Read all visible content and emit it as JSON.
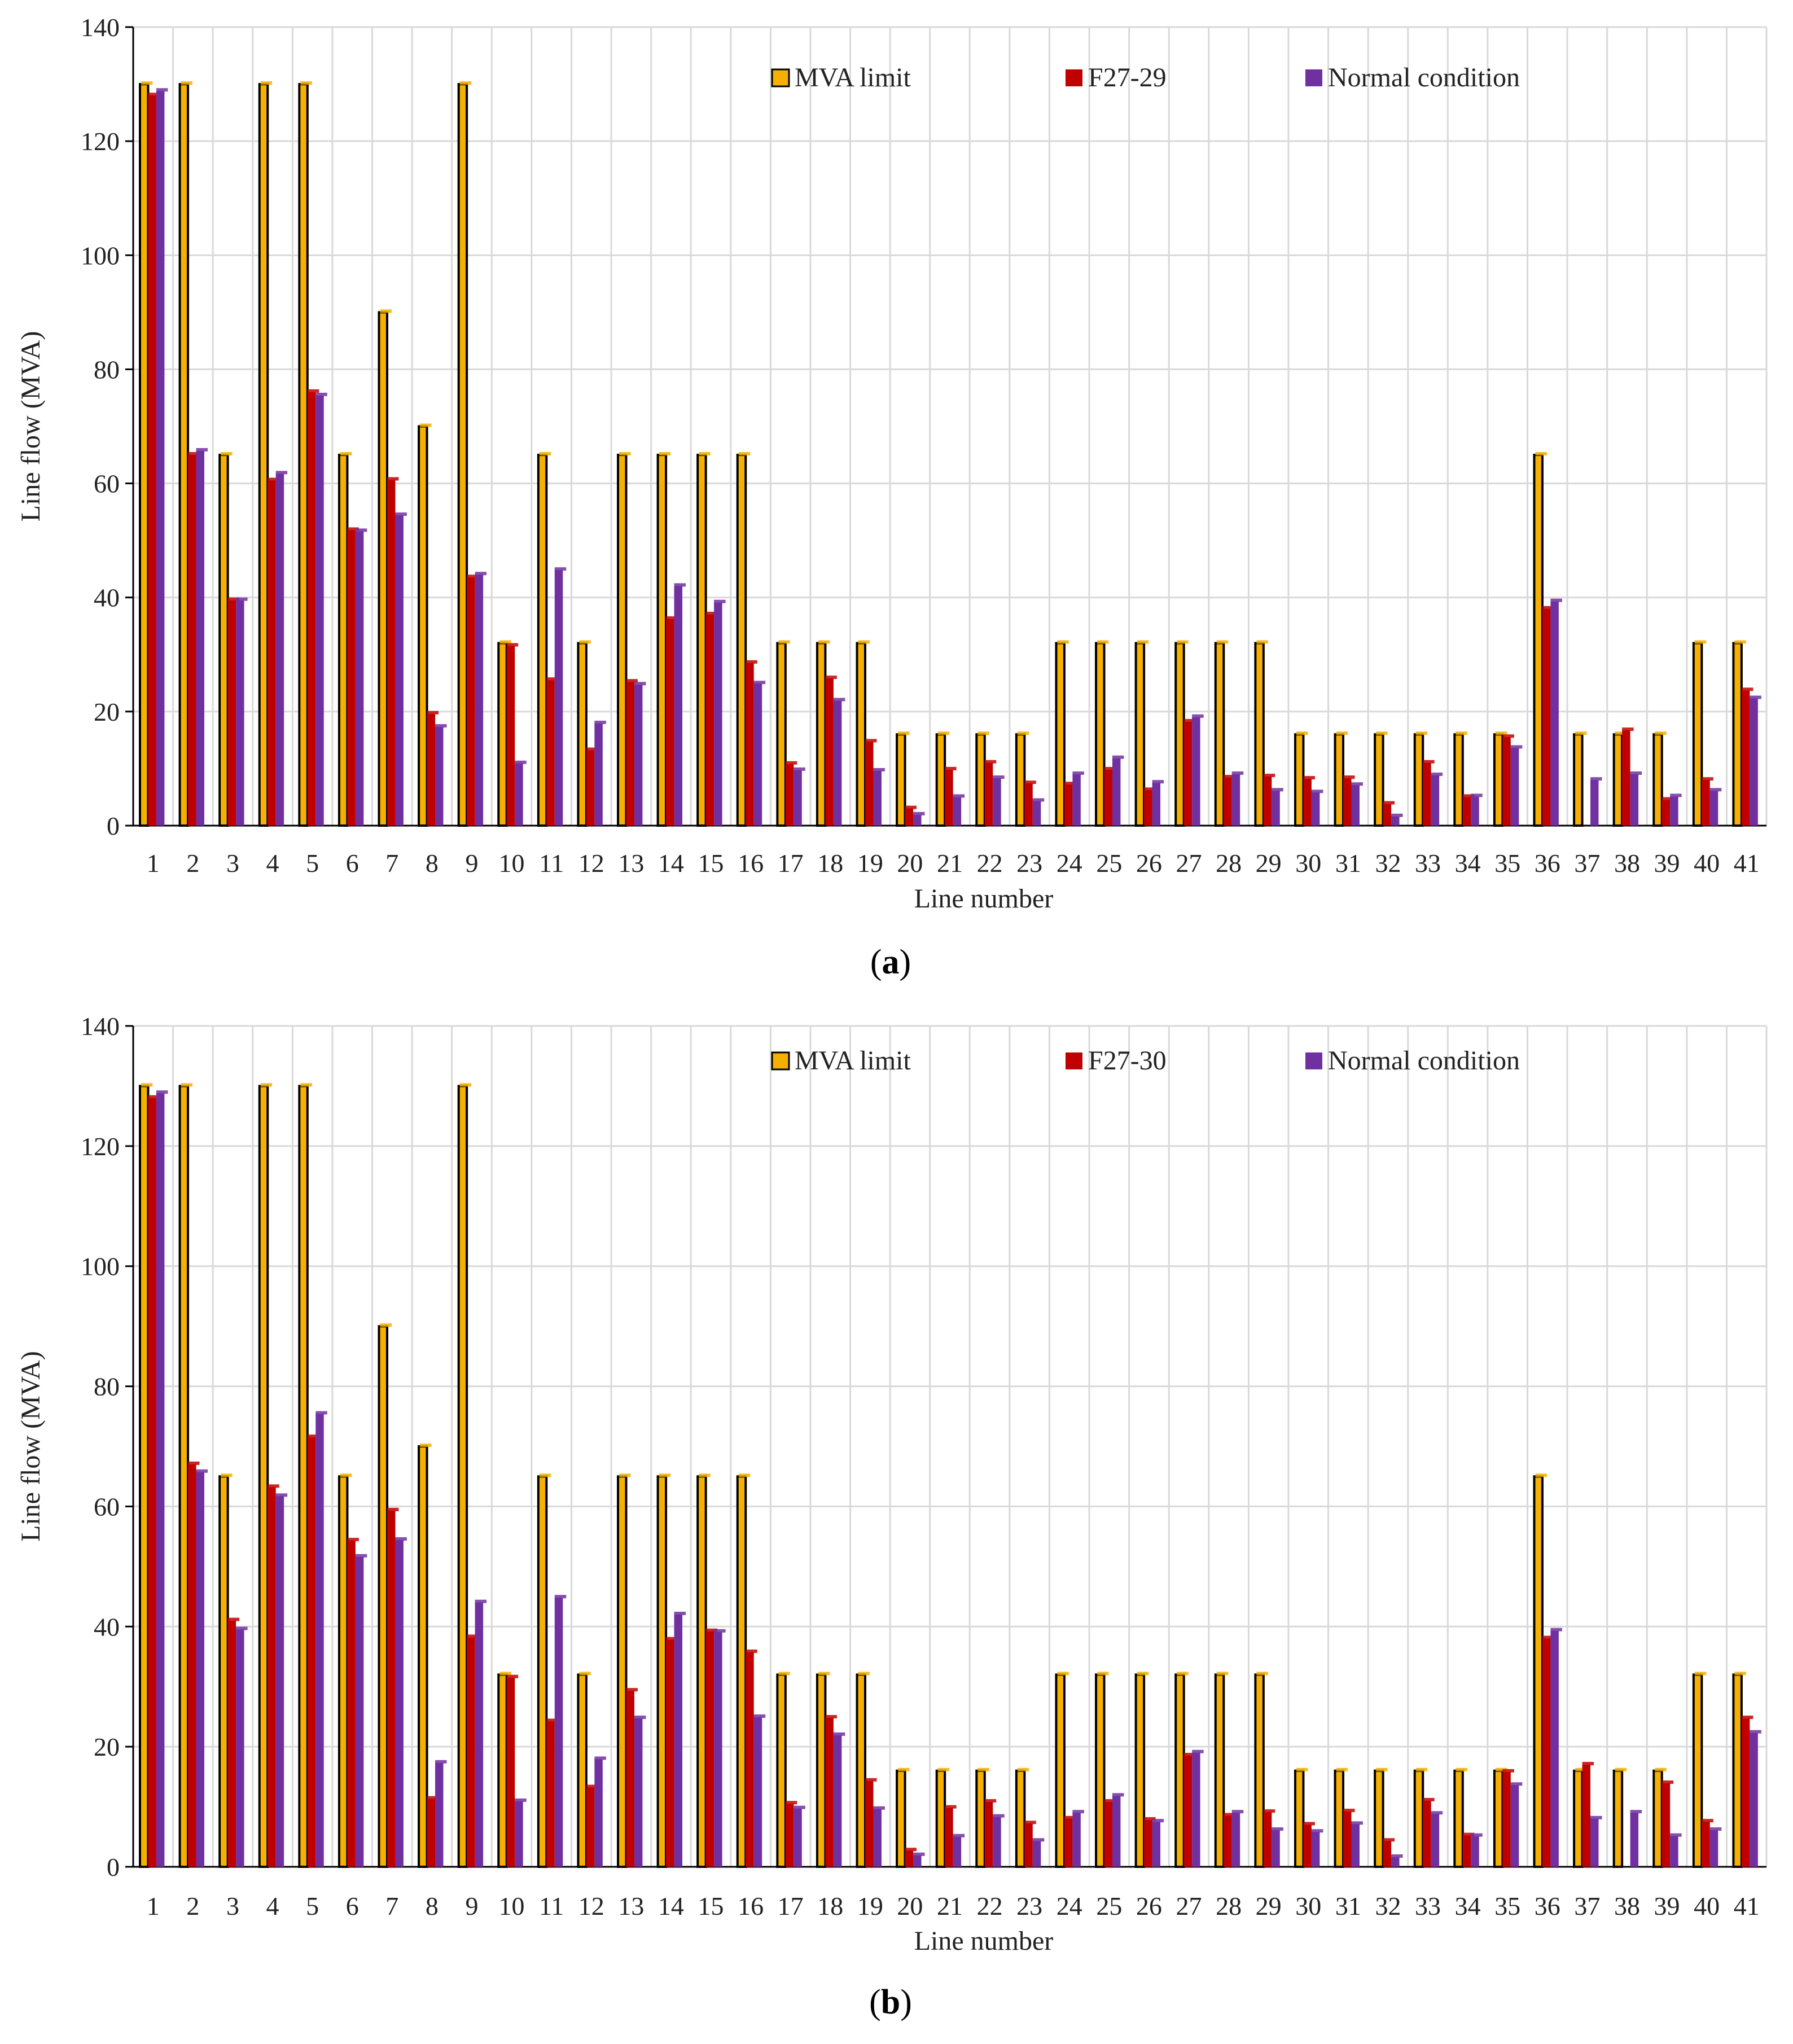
{
  "colors": {
    "limit": "#f5b000",
    "fault": "#c00000",
    "normal": "#7030a0",
    "grid": "#d9d9d9",
    "axis": "#000000"
  },
  "chart_data": [
    {
      "type": "bar",
      "panel": "a",
      "caption_open": "(",
      "caption_letter": "a",
      "caption_close": ")",
      "title": "",
      "xlabel": "Line number",
      "ylabel": "Line flow (MVA)",
      "ylim": [
        0,
        140
      ],
      "yticks": [
        "0",
        "20",
        "40",
        "60",
        "80",
        "100",
        "120",
        "140"
      ],
      "grid": true,
      "legend_position": "top-right",
      "categories": [
        "1",
        "2",
        "3",
        "4",
        "5",
        "6",
        "7",
        "8",
        "9",
        "10",
        "11",
        "12",
        "13",
        "14",
        "15",
        "16",
        "17",
        "18",
        "19",
        "20",
        "21",
        "22",
        "23",
        "24",
        "25",
        "26",
        "27",
        "28",
        "29",
        "30",
        "31",
        "32",
        "33",
        "34",
        "35",
        "36",
        "37",
        "38",
        "39",
        "40",
        "41"
      ],
      "series": [
        {
          "name": "MVA limit",
          "color_key": "limit",
          "values": [
            130,
            130,
            65,
            130,
            130,
            65,
            90,
            70,
            130,
            32,
            65,
            32,
            65,
            65,
            65,
            65,
            32,
            32,
            32,
            16,
            16,
            16,
            16,
            32,
            32,
            32,
            32,
            32,
            32,
            16,
            16,
            16,
            16,
            16,
            16,
            65,
            16,
            16,
            16,
            32,
            32
          ]
        },
        {
          "name": "F27-29",
          "color_key": "fault",
          "values": [
            128,
            65,
            39.5,
            60.5,
            76,
            51.8,
            60.6,
            19.6,
            43.5,
            31.5,
            25.5,
            13.2,
            25.2,
            36.2,
            37,
            28.5,
            10.8,
            25.8,
            14.7,
            3,
            9.8,
            11,
            7.4,
            7.2,
            9.8,
            6.2,
            18.2,
            8.4,
            8.6,
            8.2,
            8.3,
            3.8,
            11,
            5,
            15.5,
            38,
            0,
            16.7,
            4.5,
            8,
            23.7
          ]
        },
        {
          "name": "Normal condition",
          "color_key": "normal",
          "values": [
            128.8,
            65.7,
            39.5,
            61.7,
            75.4,
            51.6,
            54.4,
            17.3,
            44,
            10.9,
            44.8,
            17.9,
            24.7,
            42,
            39.1,
            24.9,
            9.7,
            21.9,
            9.6,
            1.9,
            5,
            8.3,
            4.3,
            9,
            11.8,
            7.5,
            19,
            9,
            6.1,
            5.8,
            7.1,
            1.6,
            8.8,
            5.1,
            13.6,
            39.3,
            8,
            9,
            5.1,
            6.1,
            22.3
          ]
        }
      ]
    },
    {
      "type": "bar",
      "panel": "b",
      "caption_open": "(",
      "caption_letter": "b",
      "caption_close": ")",
      "title": "",
      "xlabel": "Line number",
      "ylabel": "Line flow (MVA)",
      "ylim": [
        0,
        140
      ],
      "yticks": [
        "0",
        "20",
        "40",
        "60",
        "80",
        "100",
        "120",
        "140"
      ],
      "grid": true,
      "legend_position": "top-right",
      "categories": [
        "1",
        "2",
        "3",
        "4",
        "5",
        "6",
        "7",
        "8",
        "9",
        "10",
        "11",
        "12",
        "13",
        "14",
        "15",
        "16",
        "17",
        "18",
        "19",
        "20",
        "21",
        "22",
        "23",
        "24",
        "25",
        "26",
        "27",
        "28",
        "29",
        "30",
        "31",
        "32",
        "33",
        "34",
        "35",
        "36",
        "37",
        "38",
        "39",
        "40",
        "41"
      ],
      "series": [
        {
          "name": "MVA limit",
          "color_key": "limit",
          "values": [
            130,
            130,
            65,
            130,
            130,
            65,
            90,
            70,
            130,
            32,
            65,
            32,
            65,
            65,
            65,
            65,
            32,
            32,
            32,
            16,
            16,
            16,
            16,
            32,
            32,
            32,
            32,
            32,
            32,
            16,
            16,
            16,
            16,
            16,
            16,
            65,
            16,
            16,
            16,
            32,
            32
          ]
        },
        {
          "name": "F27-30",
          "color_key": "fault",
          "values": [
            128,
            67,
            41,
            63.2,
            71.5,
            54.3,
            59.3,
            11.3,
            38.2,
            31.5,
            24.2,
            13.2,
            29.3,
            37.8,
            39.2,
            35.7,
            10.5,
            24.8,
            14.3,
            2.7,
            9.8,
            10.8,
            7.2,
            8,
            10.8,
            7.8,
            18.5,
            8.5,
            9.1,
            7,
            9.2,
            4.3,
            11,
            5.2,
            15.8,
            38,
            17,
            0,
            13.9,
            7.5,
            24.7
          ]
        },
        {
          "name": "Normal condition",
          "color_key": "normal",
          "values": [
            128.8,
            65.7,
            39.5,
            61.7,
            75.4,
            51.6,
            54.4,
            17.3,
            44,
            10.9,
            44.8,
            17.9,
            24.7,
            42,
            39.1,
            24.9,
            9.7,
            21.9,
            9.6,
            1.9,
            5,
            8.3,
            4.3,
            9,
            11.8,
            7.5,
            19,
            9,
            6.1,
            5.8,
            7.1,
            1.6,
            8.8,
            5.1,
            13.6,
            39.3,
            8,
            9,
            5.1,
            6.1,
            22.3
          ]
        }
      ]
    }
  ]
}
